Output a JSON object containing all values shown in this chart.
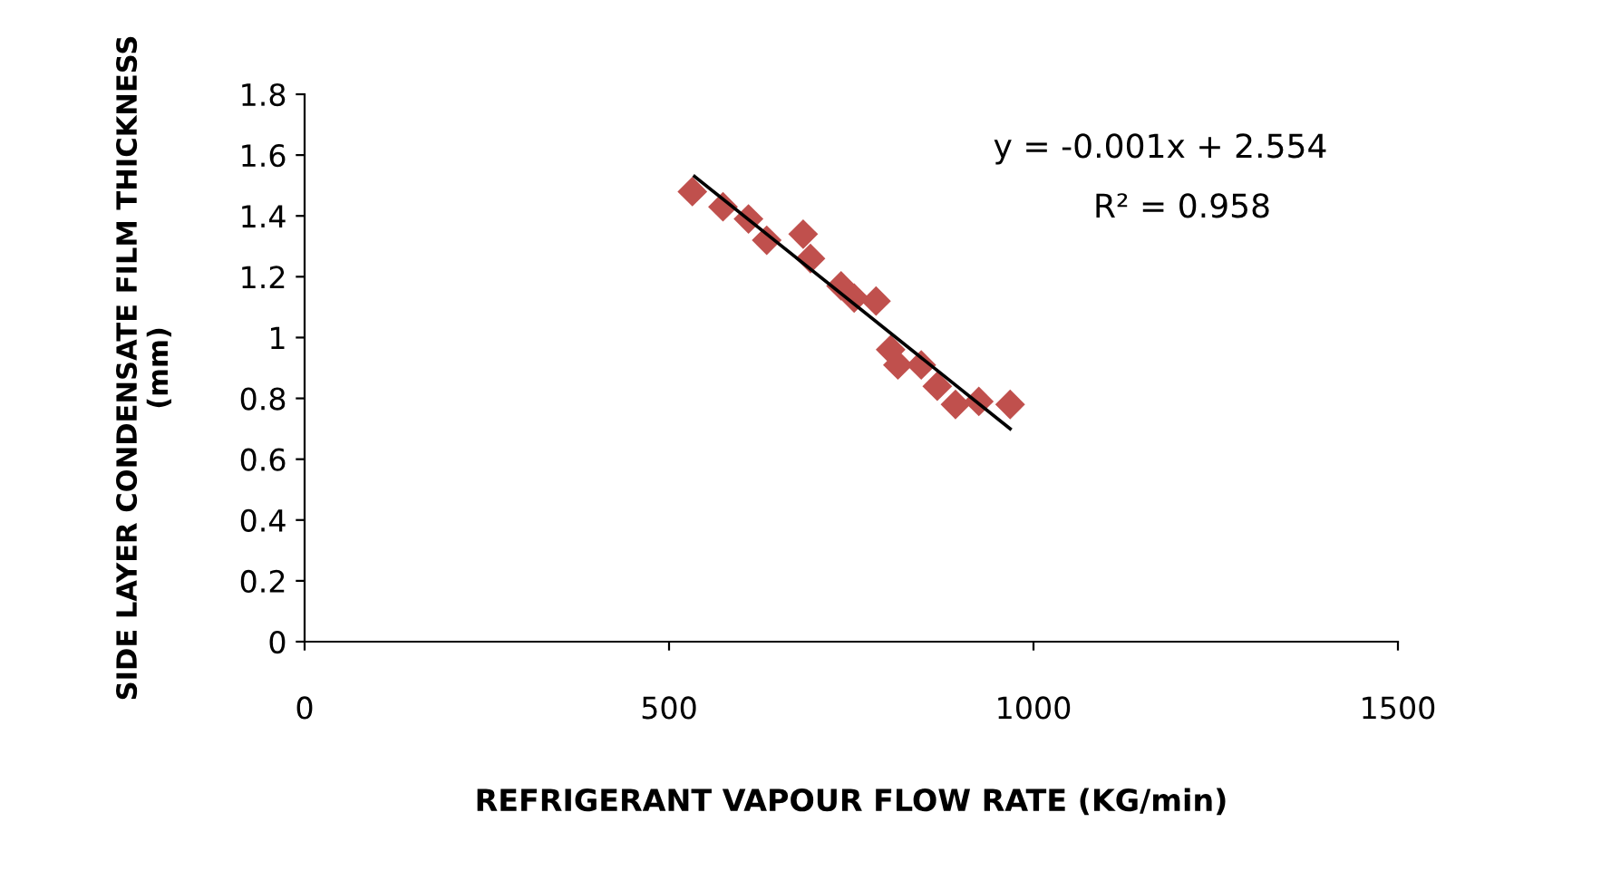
{
  "chart_data": {
    "type": "scatter",
    "xlabel": "REFRIGERANT VAPOUR FLOW RATE (KG/min)",
    "ylabel": "SIDE LAYER CONDENSATE FILM THICKNESS (mm)",
    "grid": false,
    "legend": false,
    "xlim": [
      0,
      1500
    ],
    "xticks": [
      0,
      500,
      1000,
      1500
    ],
    "ylim": [
      0,
      1.8
    ],
    "yticks": [
      0,
      0.2,
      0.4,
      0.6,
      0.8,
      1,
      1.2,
      1.4,
      1.6,
      1.8
    ],
    "annotations": [
      "y = -0.001x + 2.554",
      "R² = 0.958"
    ],
    "series": [
      {
        "marker": "diamond",
        "color": "#c0504d",
        "x": [
          532,
          574,
          609,
          634,
          684,
          694,
          736,
          754,
          784,
          804,
          814,
          846,
          868,
          893,
          925,
          968
        ],
        "values": [
          1.48,
          1.43,
          1.39,
          1.32,
          1.34,
          1.26,
          1.17,
          1.13,
          1.12,
          0.96,
          0.91,
          0.91,
          0.84,
          0.78,
          0.79,
          0.78
        ]
      },
      {
        "type": "line",
        "marker": "none",
        "color": "#000000",
        "x": [
          535,
          968
        ],
        "values": [
          1.53,
          0.7
        ]
      }
    ]
  }
}
